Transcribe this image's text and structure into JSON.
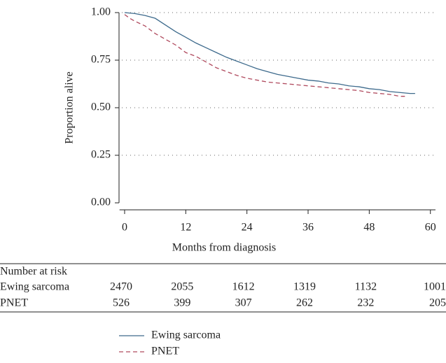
{
  "chart_data": {
    "type": "step",
    "xlabel": "Months from diagnosis",
    "ylabel": "Proportion alive",
    "xlim": [
      -1,
      61
    ],
    "ylim": [
      0,
      1
    ],
    "xticks": [
      0,
      12,
      24,
      36,
      48,
      60
    ],
    "yticks": [
      {
        "value": 0,
        "label": "0.00"
      },
      {
        "value": 0.25,
        "label": "0.25"
      },
      {
        "value": 0.5,
        "label": "0.50"
      },
      {
        "value": 0.75,
        "label": "0.75"
      },
      {
        "value": 1,
        "label": "1.00"
      }
    ],
    "grid": true,
    "series": [
      {
        "name": "Ewing sarcoma",
        "color": "#3d6a8c",
        "dash": false,
        "x": [
          0,
          2,
          4,
          6,
          8,
          10,
          12,
          14,
          16,
          18,
          20,
          22,
          24,
          26,
          28,
          30,
          32,
          34,
          36,
          38,
          40,
          42,
          44,
          46,
          48,
          50,
          52,
          54,
          56,
          57
        ],
        "values": [
          1.0,
          0.995,
          0.985,
          0.97,
          0.935,
          0.9,
          0.87,
          0.84,
          0.815,
          0.79,
          0.765,
          0.745,
          0.725,
          0.705,
          0.69,
          0.675,
          0.665,
          0.655,
          0.645,
          0.64,
          0.63,
          0.625,
          0.615,
          0.61,
          0.6,
          0.595,
          0.585,
          0.58,
          0.575,
          0.575
        ]
      },
      {
        "name": "PNET",
        "color": "#b04a5e",
        "dash": true,
        "x": [
          0,
          1,
          2,
          4,
          6,
          8,
          10,
          12,
          14,
          16,
          18,
          20,
          22,
          24,
          26,
          28,
          30,
          32,
          34,
          36,
          38,
          40,
          42,
          44,
          46,
          48,
          50,
          52,
          54,
          55
        ],
        "values": [
          0.99,
          0.97,
          0.955,
          0.93,
          0.89,
          0.86,
          0.83,
          0.79,
          0.77,
          0.74,
          0.71,
          0.69,
          0.67,
          0.655,
          0.645,
          0.635,
          0.63,
          0.625,
          0.62,
          0.615,
          0.61,
          0.605,
          0.6,
          0.595,
          0.59,
          0.58,
          0.575,
          0.57,
          0.56,
          0.56
        ]
      }
    ],
    "risk_table": {
      "title": "Number at risk",
      "rows": [
        {
          "label": "Ewing sarcoma",
          "values": [
            "2470",
            "2055",
            "1612",
            "1319",
            "1132",
            "1001"
          ]
        },
        {
          "label": "PNET",
          "values": [
            "526",
            "399",
            "307",
            "262",
            "232",
            "205"
          ]
        }
      ]
    }
  }
}
